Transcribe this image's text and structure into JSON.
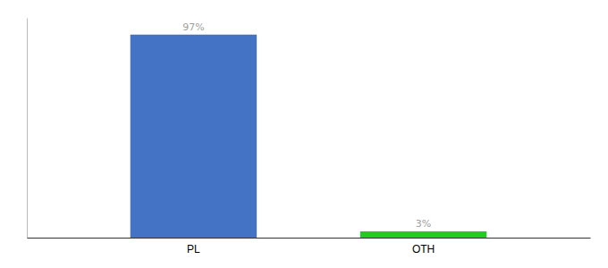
{
  "chart_data": {
    "type": "bar",
    "categories": [
      "PL",
      "OTH"
    ],
    "values": [
      97,
      3
    ],
    "value_labels": [
      "97%",
      "3%"
    ],
    "colors": [
      "#4472c4",
      "#22cc22"
    ],
    "ylim": [
      0,
      105
    ],
    "data_labels": true,
    "tick_labels": "x",
    "grid": false
  }
}
